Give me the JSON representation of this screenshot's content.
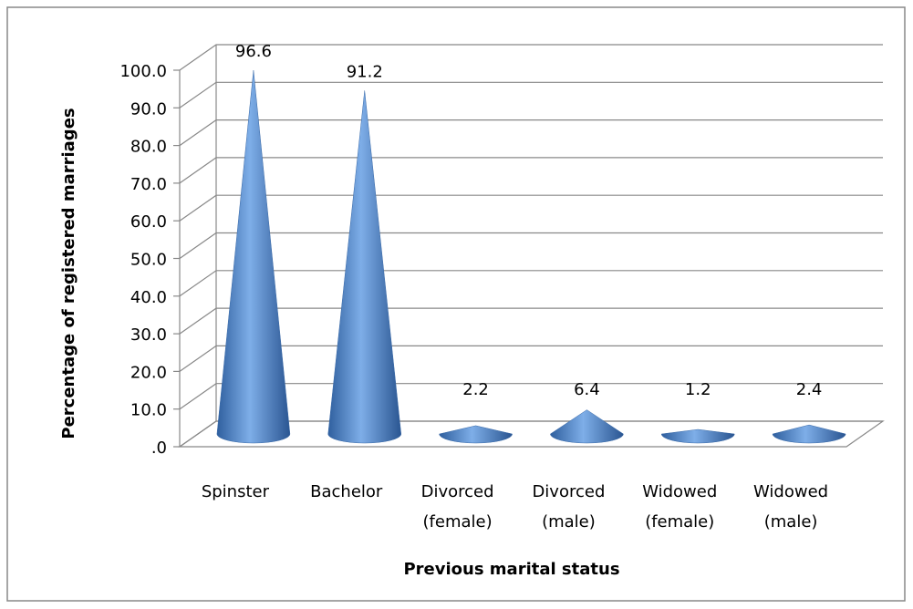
{
  "chart_data": {
    "type": "cone",
    "categories": [
      "Spinster",
      "Bachelor",
      "Divorced (female)",
      "Divorced (male)",
      "Widowed (female)",
      "Widowed (male)"
    ],
    "values": [
      96.6,
      91.2,
      2.2,
      6.4,
      1.2,
      2.4
    ],
    "color": "#4f81bd",
    "ylim": [
      0,
      100
    ],
    "yticks": [
      {
        "value": 0,
        "label": ".0"
      },
      {
        "value": 10,
        "label": "10.0"
      },
      {
        "value": 20,
        "label": "20.0"
      },
      {
        "value": 30,
        "label": "30.0"
      },
      {
        "value": 40,
        "label": "40.0"
      },
      {
        "value": 50,
        "label": "50.0"
      },
      {
        "value": 60,
        "label": "60.0"
      },
      {
        "value": 70,
        "label": "70.0"
      },
      {
        "value": 80,
        "label": "80.0"
      },
      {
        "value": 90,
        "label": "90.0"
      },
      {
        "value": 100,
        "label": "100.0"
      }
    ],
    "grid": true,
    "xlabel": "Previous marital status",
    "ylabel": "Percentage of registered marriages"
  }
}
